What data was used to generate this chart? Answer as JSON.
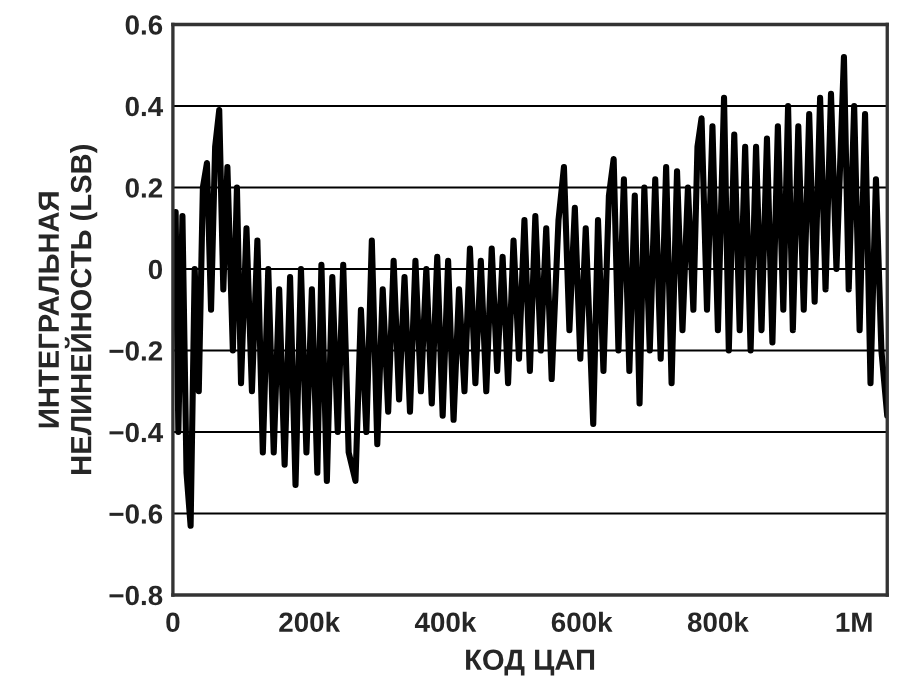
{
  "chart_data": {
    "type": "line",
    "xlabel": "КОД ЦАП",
    "ylabel": "ИНТЕГРАЛЬНАЯ\nНЕЛИНЕЙНОСТЬ (LSB)",
    "xlim": [
      0,
      1048575
    ],
    "xticks": [
      0,
      {
        "value": 200000,
        "label": "200k"
      },
      {
        "value": 400000,
        "label": "400k"
      },
      {
        "value": 600000,
        "label": "600k"
      },
      {
        "value": 800000,
        "label": "800k"
      },
      {
        "value": 1000000,
        "label": "1M"
      }
    ],
    "ylim": [
      -0.8,
      0.6
    ],
    "yticks": [
      {
        "value": -0.8,
        "label": "−0.8"
      },
      {
        "value": -0.6,
        "label": "−0.6"
      },
      {
        "value": -0.4,
        "label": "−0.4"
      },
      {
        "value": -0.2,
        "label": "−0.2"
      },
      0,
      0.2,
      0.4,
      0.6
    ],
    "grid": "y",
    "line_style": "solid",
    "series": [
      {
        "color": "#000000",
        "x": [
          0,
          4000,
          8000,
          14000,
          20000,
          26000,
          32000,
          38000,
          44000,
          50000,
          56000,
          62000,
          68000,
          74000,
          80000,
          88000,
          94000,
          100000,
          108000,
          116000,
          124000,
          132000,
          140000,
          148000,
          156000,
          164000,
          172000,
          180000,
          188000,
          196000,
          204000,
          212000,
          218000,
          226000,
          234000,
          242000,
          250000,
          258000,
          268000,
          276000,
          284000,
          292000,
          300000,
          308000,
          316000,
          324000,
          332000,
          340000,
          348000,
          356000,
          364000,
          372000,
          380000,
          388000,
          396000,
          404000,
          412000,
          420000,
          428000,
          436000,
          444000,
          452000,
          460000,
          468000,
          476000,
          484000,
          492000,
          500000,
          508000,
          516000,
          524000,
          532000,
          540000,
          548000,
          556000,
          566000,
          574000,
          582000,
          590000,
          598000,
          606000,
          617000,
          624000,
          632000,
          640000,
          647000,
          654000,
          662000,
          670000,
          678000,
          685000,
          692000,
          700000,
          708000,
          716000,
          724000,
          732000,
          740000,
          748000,
          756000,
          764000,
          770000,
          776000,
          784000,
          792000,
          800000,
          809000,
          816000,
          824000,
          832000,
          840000,
          848000,
          856000,
          864000,
          872000,
          880000,
          888000,
          896000,
          903000,
          910000,
          918000,
          926000,
          934000,
          942000,
          950000,
          958000,
          966000,
          974000,
          985000,
          992000,
          1000000,
          1008000,
          1016000,
          1024000,
          1032000,
          1040000,
          1048575
        ],
        "values": [
          -0.1,
          0.14,
          -0.4,
          0.13,
          -0.5,
          -0.63,
          0.0,
          -0.3,
          0.2,
          0.26,
          -0.1,
          0.3,
          0.39,
          -0.05,
          0.25,
          -0.2,
          0.2,
          -0.28,
          0.1,
          -0.3,
          0.07,
          -0.45,
          0.0,
          -0.45,
          -0.05,
          -0.48,
          -0.02,
          -0.53,
          0.0,
          -0.45,
          -0.05,
          -0.5,
          0.01,
          -0.52,
          -0.02,
          -0.4,
          0.01,
          -0.45,
          -0.52,
          -0.1,
          -0.4,
          0.07,
          -0.43,
          -0.05,
          -0.35,
          0.02,
          -0.32,
          -0.02,
          -0.35,
          0.02,
          -0.3,
          0.0,
          -0.33,
          0.03,
          -0.36,
          0.02,
          -0.37,
          -0.05,
          -0.3,
          0.05,
          -0.28,
          0.02,
          -0.3,
          0.05,
          -0.25,
          0.03,
          -0.28,
          0.07,
          -0.22,
          0.12,
          -0.25,
          0.13,
          -0.2,
          0.1,
          -0.27,
          0.12,
          0.25,
          -0.15,
          0.15,
          -0.22,
          0.1,
          -0.38,
          0.12,
          -0.25,
          0.18,
          0.27,
          -0.2,
          0.22,
          -0.25,
          0.18,
          -0.33,
          0.2,
          -0.2,
          0.22,
          -0.22,
          0.25,
          -0.28,
          0.24,
          -0.15,
          0.2,
          -0.1,
          0.3,
          0.37,
          -0.1,
          0.35,
          -0.15,
          0.42,
          -0.2,
          0.33,
          -0.15,
          0.3,
          -0.2,
          0.3,
          -0.15,
          0.32,
          -0.18,
          0.35,
          -0.1,
          0.4,
          -0.15,
          0.35,
          -0.1,
          0.38,
          -0.08,
          0.42,
          -0.05,
          0.43,
          0.0,
          0.52,
          -0.05,
          0.4,
          -0.15,
          0.38,
          -0.28,
          0.22,
          -0.2,
          -0.36
        ]
      }
    ]
  }
}
